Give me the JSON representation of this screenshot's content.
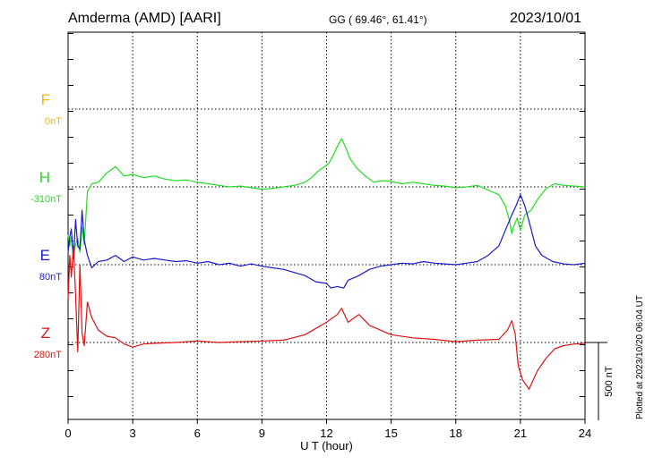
{
  "header": {
    "station": "Amderma (AMD)  [AARI]",
    "coords": "GG ( 69.46°,  61.41°)",
    "date": "2023/10/01"
  },
  "footer": {
    "plotted": "Plotted at 2023/10/20 06:04 UT"
  },
  "colors": {
    "F": "#f5b400",
    "H": "#22dd22",
    "E": "#1a1acc",
    "Z": "#dd1111"
  },
  "chart_data": {
    "type": "line",
    "xlabel": "U T (hour)",
    "xlim": [
      0,
      24
    ],
    "xticks": [
      0,
      3,
      6,
      9,
      12,
      15,
      18,
      21,
      24
    ],
    "scale_bar": "500 nT",
    "grid": true,
    "series": [
      {
        "name": "F",
        "baseline": "0nT",
        "x": [],
        "y": []
      },
      {
        "name": "H",
        "baseline": "-310nT",
        "x": [
          0,
          0.08,
          0.15,
          0.25,
          0.35,
          0.45,
          0.55,
          0.65,
          0.75,
          0.9,
          1.1,
          1.4,
          1.8,
          2.2,
          2.6,
          3,
          3.5,
          4,
          4.5,
          5,
          5.5,
          6,
          6.5,
          7,
          7.5,
          8,
          8.5,
          9,
          9.5,
          10,
          10.5,
          11,
          11.3,
          11.6,
          11.9,
          12.1,
          12.3,
          12.5,
          12.7,
          12.9,
          13.1,
          13.4,
          13.8,
          14.2,
          14.6,
          15,
          15.5,
          16,
          16.5,
          17,
          17.5,
          18,
          18.5,
          19,
          19.5,
          20,
          20.3,
          20.5,
          20.6,
          20.7,
          20.85,
          21,
          21.2,
          21.5,
          21.8,
          22.2,
          22.6,
          23,
          23.5,
          24
        ],
        "y": [
          -310,
          -380,
          -320,
          -460,
          -370,
          -330,
          -420,
          -260,
          -370,
          -30,
          20,
          30,
          90,
          130,
          70,
          80,
          60,
          70,
          50,
          40,
          45,
          30,
          20,
          10,
          0,
          5,
          -5,
          -15,
          -10,
          0,
          10,
          30,
          60,
          100,
          130,
          150,
          200,
          260,
          310,
          250,
          180,
          120,
          70,
          30,
          40,
          35,
          20,
          30,
          20,
          10,
          5,
          -5,
          0,
          10,
          -20,
          -50,
          -120,
          -220,
          -300,
          -250,
          -200,
          -280,
          -180,
          -150,
          -80,
          -10,
          20,
          10,
          5,
          0
        ]
      },
      {
        "name": "E",
        "baseline": "80nT",
        "x": [
          0,
          0.08,
          0.15,
          0.25,
          0.35,
          0.45,
          0.55,
          0.65,
          0.75,
          0.9,
          1.1,
          1.4,
          1.8,
          2.2,
          2.6,
          3,
          3.5,
          4,
          4.5,
          5,
          5.5,
          6,
          6.5,
          7,
          7.5,
          8,
          8.5,
          9,
          9.5,
          10,
          10.5,
          11,
          11.5,
          12,
          12.2,
          12.5,
          12.8,
          13,
          13.5,
          14,
          14.5,
          15,
          15.5,
          16,
          16.5,
          17,
          17.5,
          18,
          18.5,
          19,
          19.5,
          20,
          20.3,
          20.6,
          20.8,
          21,
          21.2,
          21.4,
          21.7,
          22,
          22.5,
          23,
          23.5,
          24
        ],
        "y": [
          80,
          180,
          230,
          40,
          290,
          120,
          100,
          350,
          160,
          60,
          -20,
          20,
          30,
          60,
          20,
          50,
          30,
          40,
          30,
          20,
          25,
          10,
          20,
          0,
          10,
          -10,
          5,
          -10,
          -20,
          -30,
          -50,
          -70,
          -110,
          -120,
          -150,
          -140,
          -150,
          -100,
          -70,
          -30,
          -10,
          0,
          10,
          5,
          20,
          10,
          5,
          0,
          10,
          20,
          60,
          120,
          220,
          320,
          380,
          450,
          380,
          280,
          120,
          60,
          20,
          5,
          0,
          10
        ]
      },
      {
        "name": "Z",
        "baseline": "280nT",
        "x": [
          0,
          0.08,
          0.15,
          0.25,
          0.35,
          0.45,
          0.55,
          0.65,
          0.75,
          0.9,
          1.1,
          1.4,
          1.8,
          2.2,
          2.6,
          3,
          3.5,
          4,
          5,
          6,
          7,
          8,
          9,
          10,
          11,
          11.5,
          12,
          12.5,
          12.7,
          13,
          13.5,
          14,
          15,
          16,
          17,
          18,
          19,
          20,
          20.4,
          20.6,
          20.75,
          20.9,
          21.1,
          21.4,
          21.8,
          22.2,
          22.6,
          23,
          23.5,
          24
        ],
        "y": [
          280,
          560,
          420,
          620,
          300,
          -60,
          500,
          60,
          -20,
          260,
          160,
          80,
          40,
          30,
          -10,
          -30,
          -10,
          -5,
          0,
          10,
          0,
          5,
          10,
          15,
          50,
          90,
          130,
          180,
          220,
          130,
          180,
          110,
          50,
          30,
          20,
          5,
          15,
          20,
          80,
          140,
          60,
          -150,
          -240,
          -300,
          -180,
          -100,
          -40,
          -20,
          -10,
          -5
        ]
      }
    ]
  }
}
